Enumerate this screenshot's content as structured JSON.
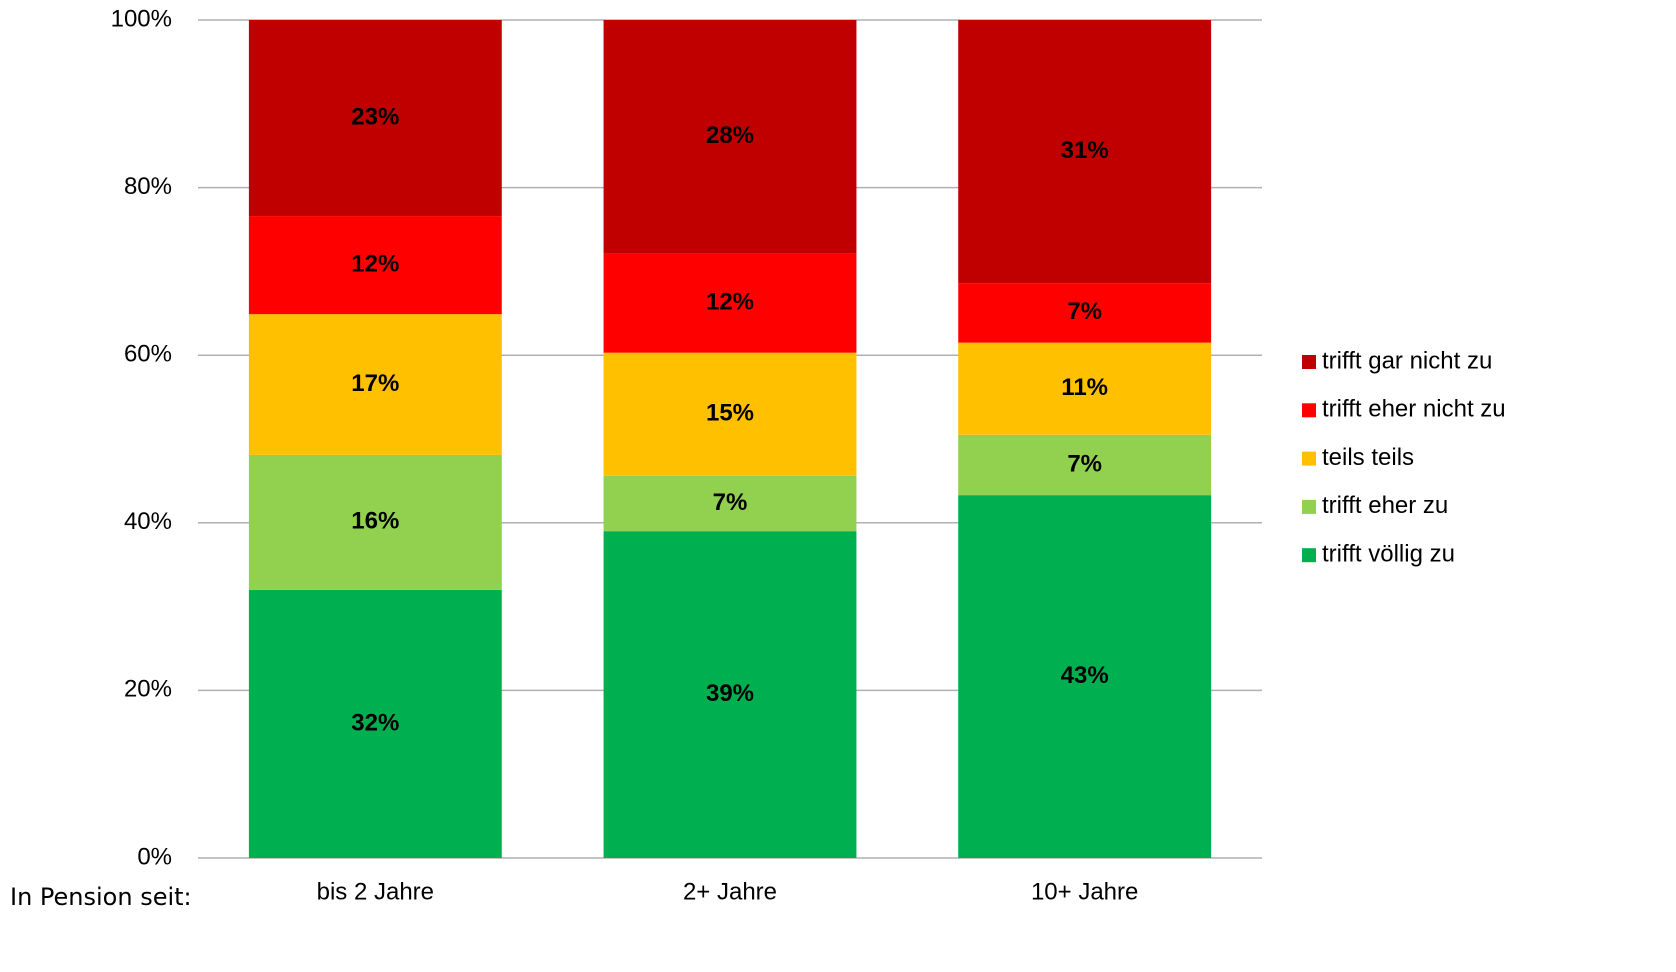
{
  "chart_data": {
    "type": "stacked_bar",
    "xlabel": "In Pension seit:",
    "categories": [
      "bis 2 Jahre",
      "2+ Jahre",
      "10+ Jahre"
    ],
    "series": [
      {
        "name": "trifft völlig zu",
        "color": "#00b050",
        "values": [
          32.0,
          39.0,
          43.3
        ],
        "value_labels": [
          "32%",
          "39%",
          "43%"
        ]
      },
      {
        "name": "trifft eher zu",
        "color": "#92d050",
        "values": [
          16.1,
          6.6,
          7.2
        ],
        "value_labels": [
          "16%",
          "7%",
          "7%"
        ]
      },
      {
        "name": "teils teils",
        "color": "#ffc000",
        "values": [
          16.8,
          14.7,
          11.0
        ],
        "value_labels": [
          "17%",
          "15%",
          "11%"
        ]
      },
      {
        "name": "trifft eher nicht zu",
        "color": "#ff0000",
        "values": [
          11.7,
          11.8,
          7.1
        ],
        "value_labels": [
          "12%",
          "12%",
          "7%"
        ]
      },
      {
        "name": "trifft gar nicht zu",
        "color": "#c00000",
        "values": [
          23.4,
          27.9,
          31.4
        ],
        "value_labels": [
          "23%",
          "28%",
          "31%"
        ]
      }
    ],
    "ylim": [
      0,
      100
    ],
    "yticks": [
      {
        "value": 0,
        "label": "0%"
      },
      {
        "value": 20,
        "label": "20%"
      },
      {
        "value": 40,
        "label": "40%"
      },
      {
        "value": 60,
        "label": "60%"
      },
      {
        "value": 80,
        "label": "80%"
      },
      {
        "value": 100,
        "label": "100%"
      }
    ],
    "grid": true,
    "legend": "right"
  }
}
